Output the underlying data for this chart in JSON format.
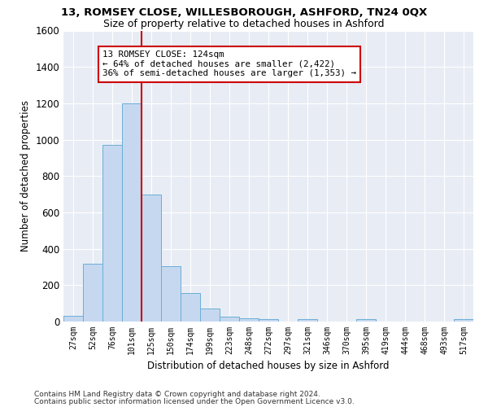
{
  "title1": "13, ROMSEY CLOSE, WILLESBOROUGH, ASHFORD, TN24 0QX",
  "title2": "Size of property relative to detached houses in Ashford",
  "xlabel": "Distribution of detached houses by size in Ashford",
  "ylabel": "Number of detached properties",
  "categories": [
    "27sqm",
    "52sqm",
    "76sqm",
    "101sqm",
    "125sqm",
    "150sqm",
    "174sqm",
    "199sqm",
    "223sqm",
    "248sqm",
    "272sqm",
    "297sqm",
    "321sqm",
    "346sqm",
    "370sqm",
    "395sqm",
    "419sqm",
    "444sqm",
    "468sqm",
    "493sqm",
    "517sqm"
  ],
  "values": [
    30,
    320,
    970,
    1200,
    700,
    305,
    155,
    70,
    28,
    20,
    15,
    0,
    15,
    0,
    0,
    12,
    0,
    0,
    0,
    0,
    12
  ],
  "bar_color": "#c5d8f0",
  "bar_edge_color": "#6baed6",
  "vline_color": "#cc0000",
  "vline_x_index": 4,
  "annotation_line1": "13 ROMSEY CLOSE: 124sqm",
  "annotation_line2": "← 64% of detached houses are smaller (2,422)",
  "annotation_line3": "36% of semi-detached houses are larger (1,353) →",
  "annotation_box_color": "#ffffff",
  "annotation_box_edge": "#cc0000",
  "ylim": [
    0,
    1600
  ],
  "yticks": [
    0,
    200,
    400,
    600,
    800,
    1000,
    1200,
    1400,
    1600
  ],
  "bg_color": "#e8edf5",
  "grid_color": "#ffffff",
  "footer1": "Contains HM Land Registry data © Crown copyright and database right 2024.",
  "footer2": "Contains public sector information licensed under the Open Government Licence v3.0."
}
